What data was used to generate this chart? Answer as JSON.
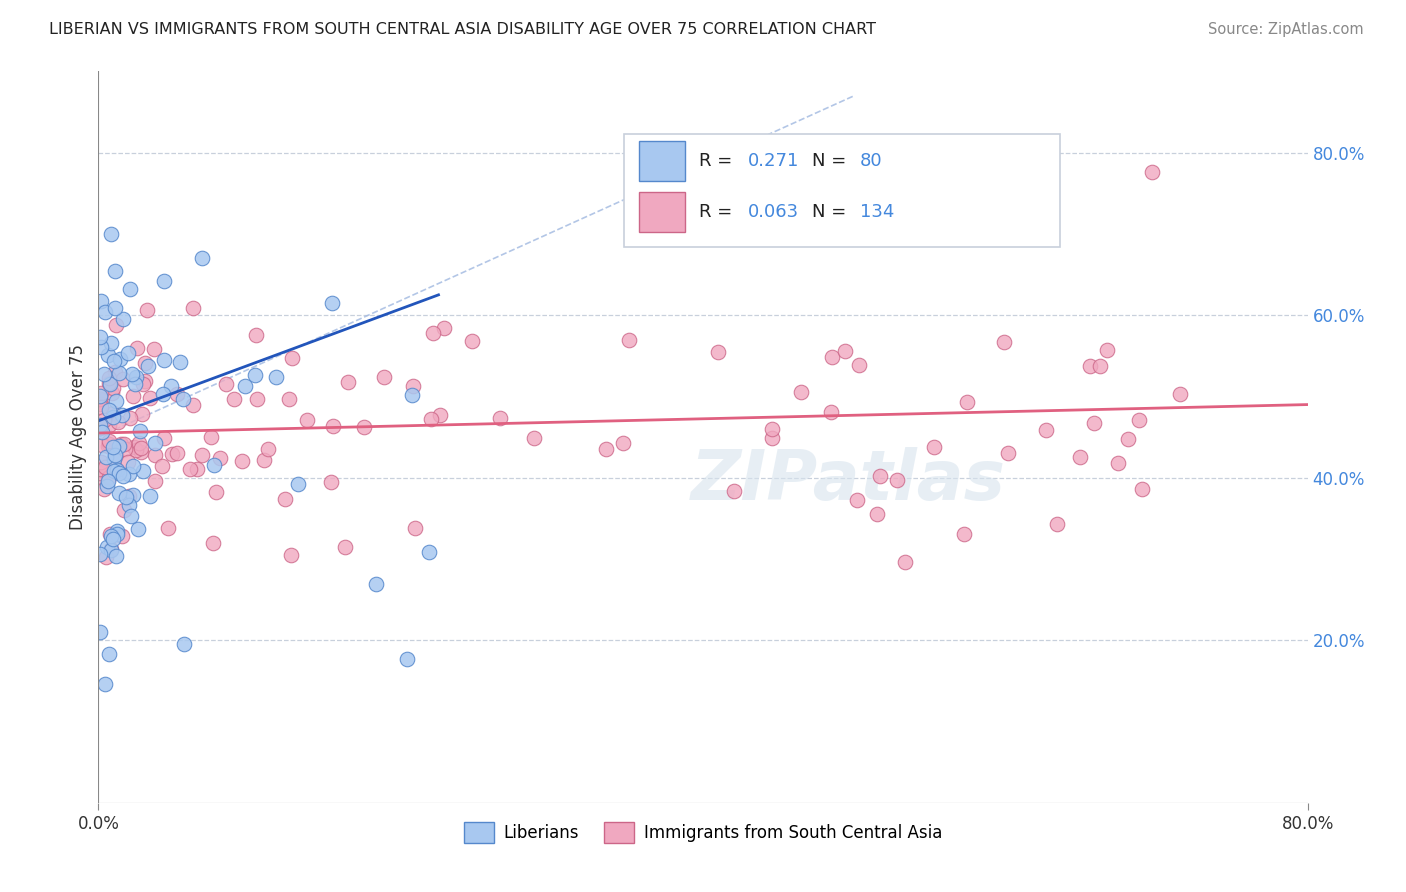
{
  "title": "LIBERIAN VS IMMIGRANTS FROM SOUTH CENTRAL ASIA DISABILITY AGE OVER 75 CORRELATION CHART",
  "source": "Source: ZipAtlas.com",
  "ylabel": "Disability Age Over 75",
  "right_yticks": [
    "80.0%",
    "60.0%",
    "40.0%",
    "20.0%"
  ],
  "right_ytick_vals": [
    0.8,
    0.6,
    0.4,
    0.2
  ],
  "legend1_color": "#a8c8f0",
  "legend2_color": "#f0a8c0",
  "line1_color": "#2255bb",
  "line2_color": "#e06080",
  "scatter1_color": "#a8c8f0",
  "scatter2_color": "#f0a8c0",
  "scatter1_edge": "#5588cc",
  "scatter2_edge": "#cc6688",
  "watermark": "ZIPatlas",
  "xmin": 0.0,
  "xmax": 0.8,
  "ymin": 0.0,
  "ymax": 0.9,
  "legend_label1": "Liberians",
  "legend_label2": "Immigrants from South Central Asia",
  "diag_color": "#a0b8e0",
  "grid_color": "#c8d0dc"
}
